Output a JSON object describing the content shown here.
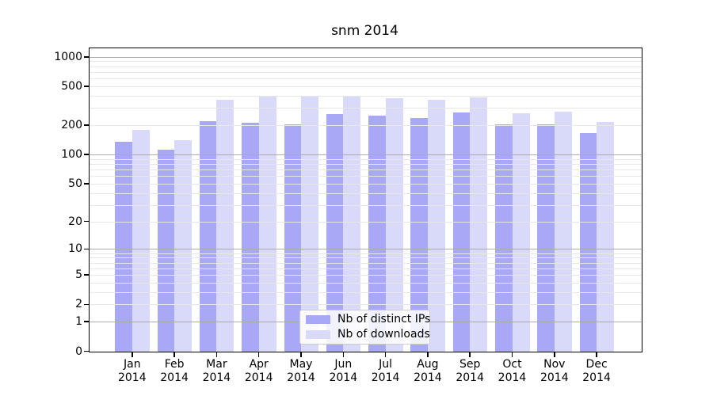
{
  "chart_data": {
    "type": "bar",
    "title": "snm 2014",
    "categories": [
      "Jan",
      "Feb",
      "Mar",
      "Apr",
      "May",
      "Jun",
      "Jul",
      "Aug",
      "Sep",
      "Oct",
      "Nov",
      "Dec"
    ],
    "x_year": "2014",
    "series": [
      {
        "name": "Nb of distinct IPs",
        "color": "#a8a8f6",
        "values": [
          137,
          113,
          223,
          214,
          207,
          264,
          255,
          238,
          272,
          205,
          207,
          167
        ]
      },
      {
        "name": "Nb of downloads",
        "color": "#d9d9f9",
        "values": [
          180,
          143,
          370,
          405,
          398,
          394,
          384,
          370,
          391,
          268,
          280,
          217
        ]
      }
    ],
    "y_axis": {
      "scale": "log1p",
      "ylim": [
        0,
        1233
      ],
      "tick_values": [
        1000,
        500,
        200,
        100,
        50,
        20,
        10,
        5,
        2,
        1,
        0
      ],
      "tick_labels": [
        "1000",
        "500",
        "200",
        "100",
        "50",
        "20",
        "10",
        "5",
        "2",
        "1",
        "0"
      ]
    },
    "grid": {
      "major_values": [
        1,
        10,
        100,
        1000
      ],
      "major_color": "#ababab",
      "minor_color": "#e7e7e7",
      "on": true
    },
    "legend": {
      "position": "lower center"
    }
  },
  "colors": {
    "background": "#ffffff",
    "axis": "#000000",
    "text": "#000000"
  }
}
